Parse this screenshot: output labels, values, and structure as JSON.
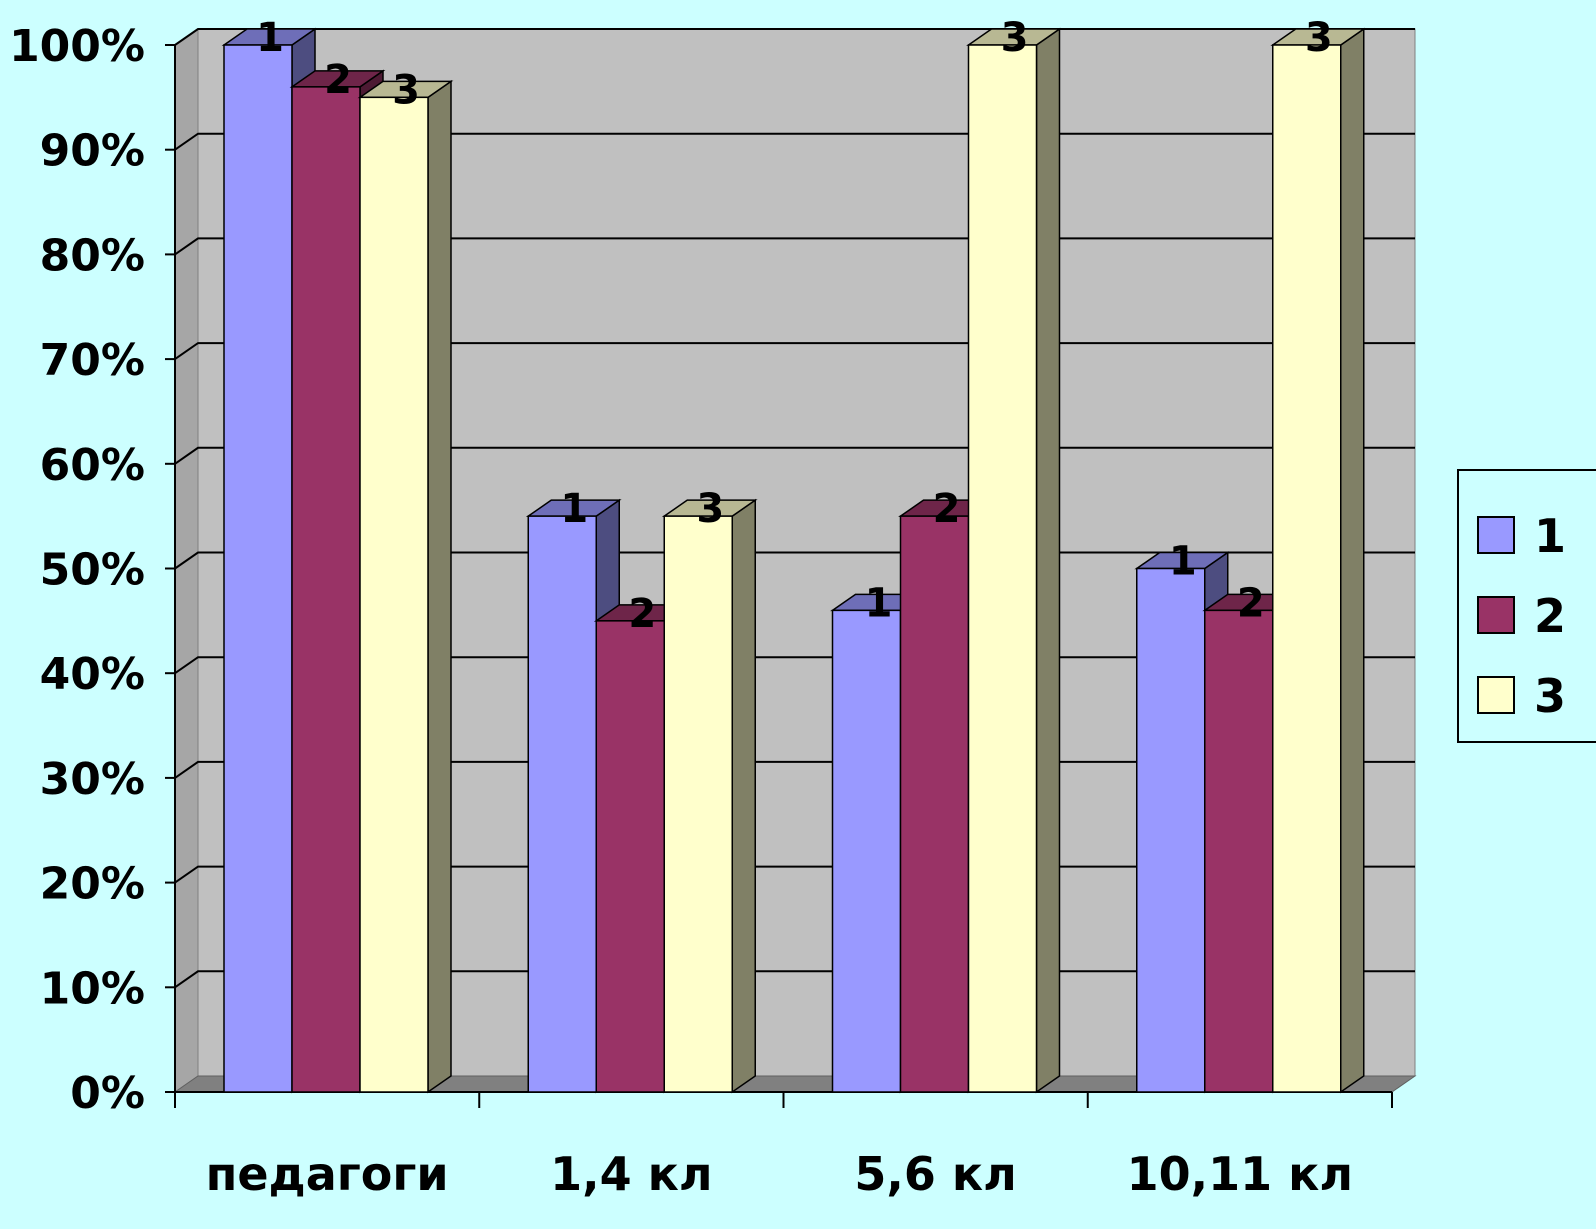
{
  "chart_data": {
    "type": "bar",
    "title": "",
    "xlabel": "",
    "ylabel": "",
    "categories": [
      "педагоги",
      "1,4 кл",
      "5,6 кл",
      "10,11 кл"
    ],
    "series": [
      {
        "name": "1",
        "values": [
          100,
          55,
          46,
          50
        ],
        "color": "#9999ff"
      },
      {
        "name": "2",
        "values": [
          96,
          45,
          55,
          46
        ],
        "color": "#993366"
      },
      {
        "name": "3",
        "values": [
          95,
          55,
          100,
          100
        ],
        "color": "#ffffcc"
      }
    ],
    "ylim": [
      0,
      100
    ],
    "yticks": [
      "0%",
      "10%",
      "20%",
      "30%",
      "40%",
      "50%",
      "60%",
      "70%",
      "80%",
      "90%",
      "100%"
    ],
    "grid": true,
    "legend_position": "right",
    "legend": [
      "1",
      "2",
      "3"
    ],
    "data_labels": [
      [
        "1",
        "1",
        "1",
        "1"
      ],
      [
        "2",
        "2",
        "2",
        "2"
      ],
      [
        "3",
        "3",
        "3",
        "3"
      ]
    ],
    "colors": {
      "background": "#ccffff",
      "plot_area": "#c0c0c0",
      "floor": "#808080"
    }
  }
}
